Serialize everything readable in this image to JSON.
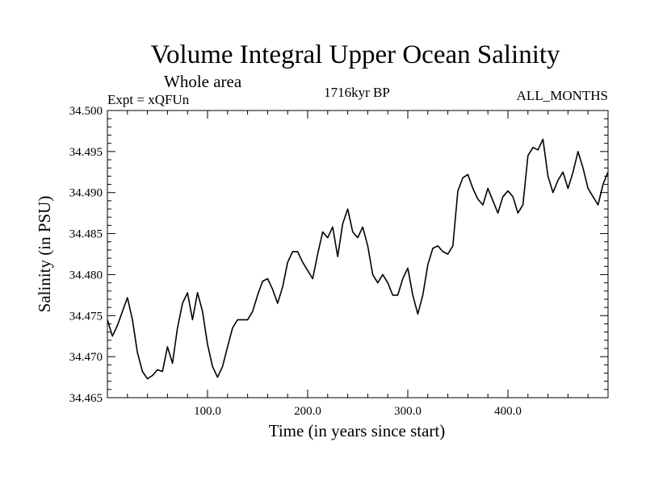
{
  "chart_data": {
    "type": "line",
    "title": "Volume Integral Upper Ocean Salinity",
    "subtitle": "Whole area",
    "header_left": "Expt = xQFUn",
    "header_center": "1716kyr BP",
    "header_right": "ALL_MONTHS",
    "xlabel": "Time (in years since start)",
    "ylabel": "Salinity (in PSU)",
    "xlim": [
      0,
      500
    ],
    "ylim": [
      34.465,
      34.5
    ],
    "x_tick_labels": [
      {
        "value": 100,
        "label": "100.0"
      },
      {
        "value": 200,
        "label": "200.0"
      },
      {
        "value": 300,
        "label": "300.0"
      },
      {
        "value": 400,
        "label": "400.0"
      }
    ],
    "y_tick_labels": [
      {
        "value": 34.465,
        "label": "34.465"
      },
      {
        "value": 34.47,
        "label": "34.470"
      },
      {
        "value": 34.475,
        "label": "34.475"
      },
      {
        "value": 34.48,
        "label": "34.480"
      },
      {
        "value": 34.485,
        "label": "34.485"
      },
      {
        "value": 34.49,
        "label": "34.490"
      },
      {
        "value": 34.495,
        "label": "34.495"
      },
      {
        "value": 34.5,
        "label": "34.500"
      }
    ],
    "grid": false,
    "series": [
      {
        "name": "salinity",
        "x": [
          0,
          5,
          10,
          15,
          20,
          25,
          30,
          35,
          40,
          45,
          50,
          55,
          60,
          65,
          70,
          75,
          80,
          85,
          90,
          95,
          100,
          105,
          110,
          115,
          120,
          125,
          130,
          135,
          140,
          145,
          150,
          155,
          160,
          165,
          170,
          175,
          180,
          185,
          190,
          195,
          200,
          205,
          210,
          215,
          220,
          225,
          230,
          235,
          240,
          245,
          250,
          255,
          260,
          265,
          270,
          275,
          280,
          285,
          290,
          295,
          300,
          305,
          310,
          315,
          320,
          325,
          330,
          335,
          340,
          345,
          350,
          355,
          360,
          365,
          370,
          375,
          380,
          385,
          390,
          395,
          400,
          405,
          410,
          415,
          420,
          425,
          430,
          435,
          440,
          445,
          450,
          455,
          460,
          465,
          470,
          475,
          480,
          485,
          490,
          495,
          500
        ],
        "values": [
          34.4745,
          34.4725,
          34.4738,
          34.4755,
          34.4772,
          34.4745,
          34.4705,
          34.4682,
          34.4673,
          34.4677,
          34.4684,
          34.4682,
          34.4712,
          34.4692,
          34.4735,
          34.4765,
          34.4778,
          34.4745,
          34.4778,
          34.4755,
          34.4715,
          34.4688,
          34.4675,
          34.4688,
          34.4712,
          34.4735,
          34.4745,
          34.4745,
          34.4745,
          34.4755,
          34.4775,
          34.4792,
          34.4795,
          34.4782,
          34.4765,
          34.4785,
          34.4815,
          34.4828,
          34.4828,
          34.4815,
          34.4805,
          34.4795,
          34.4825,
          34.4852,
          34.4845,
          34.4858,
          34.4822,
          34.4862,
          34.488,
          34.4852,
          34.4845,
          34.4858,
          34.4835,
          34.48,
          34.479,
          34.48,
          34.479,
          34.4775,
          34.4775,
          34.4795,
          34.4808,
          34.4775,
          34.4752,
          34.4775,
          34.4812,
          34.4832,
          34.4835,
          34.4828,
          34.4825,
          34.4835,
          34.4902,
          34.4918,
          34.4922,
          34.4905,
          34.4892,
          34.4885,
          34.4905,
          34.489,
          34.4875,
          34.4895,
          34.4902,
          34.4895,
          34.4875,
          34.4885,
          34.4945,
          34.4955,
          34.4952,
          34.4965,
          34.492,
          34.49,
          34.4915,
          34.4925,
          34.4905,
          34.4925,
          34.495,
          34.493,
          34.4905,
          34.4895,
          34.4885,
          34.491,
          34.4925
        ]
      }
    ]
  }
}
